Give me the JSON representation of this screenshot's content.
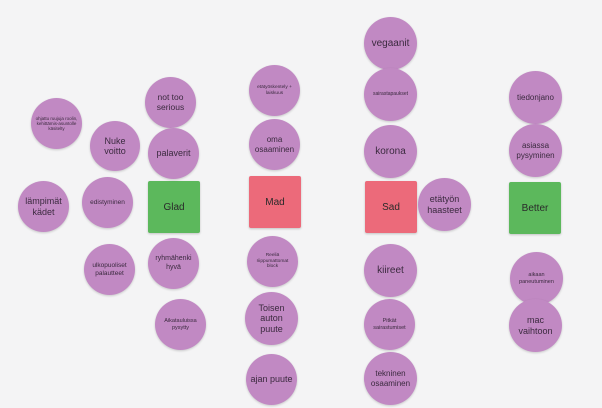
{
  "colors": {
    "background": "#f4f4f5",
    "note": "#c189c3",
    "glad": "#5cb85c",
    "mad": "#ec6a7a",
    "sad": "#ec6a7a",
    "better": "#5cb85c"
  },
  "categories": {
    "glad": "Glad",
    "mad": "Mad",
    "sad": "Sad",
    "better": "Better"
  },
  "notes": {
    "glad": {
      "arrived_on_time": "Nuke voitto",
      "not_too_serious": "not too serious",
      "meetings": "palaverit",
      "chained_tasks": "ohjattu ruujuja roolin, kehittämis-asuntolle käsitelty",
      "warm_hands": "lämpimät kädet",
      "progress": "edistyminen",
      "external_feedback": "ulkopuoliset palautteet",
      "team_spirit": "ryhmähenki hyvä",
      "schedule": "Aikatauluissa pysytty"
    },
    "mad": {
      "remote_small": "etätyöskentely + laiskuus",
      "own_skills": "oma osaaminen",
      "hidden_tasks": "Reeliä riippumattomat block",
      "others_car": "Toisen auton puute",
      "time_lack": "ajan puute"
    },
    "sad": {
      "vegans": "vegaanit",
      "sick_leave_top": "sairastapaukset",
      "corona": "korona",
      "remote_challenges": "etätyön haasteet",
      "rush": "kiireet",
      "short_sick": "Pitkät sairastumiset",
      "tech_skills": "tekninen osaaminen"
    },
    "better": {
      "info": "tiedonjano",
      "staying_on_topic": "asiassa pysyminen",
      "earlier_focus": "aikaan paneutuminen",
      "mac_swap": "mac vaihtoon"
    }
  }
}
